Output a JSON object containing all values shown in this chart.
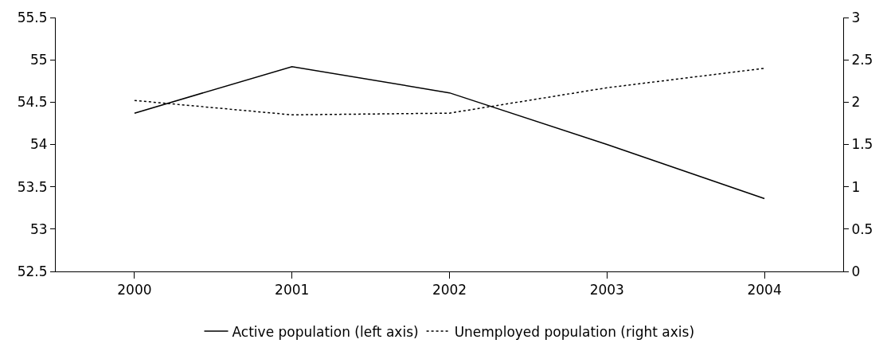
{
  "chart_data": {
    "type": "line",
    "categories": [
      "2000",
      "2001",
      "2002",
      "2003",
      "2004"
    ],
    "series": [
      {
        "name": "Active population (left axis)",
        "color": "#000000",
        "line_style": "solid",
        "values": [
          54.37,
          54.92,
          54.61,
          54.0,
          53.36
        ]
      },
      {
        "name": "Unemployed population (right axis)",
        "color": "#000000",
        "line_style": "dotted",
        "axis": "y2",
        "values": [
          2.02,
          1.85,
          1.87,
          2.17,
          2.4
        ]
      }
    ],
    "ylim": [
      52.5,
      55.5
    ],
    "yticks": [
      52.5,
      53,
      53.5,
      54,
      54.5,
      55,
      55.5
    ],
    "y2lim": [
      0,
      3
    ],
    "y2ticks": [
      0,
      0.5,
      1,
      1.5,
      2,
      2.5,
      3
    ],
    "legend": "bottom",
    "marker": "none"
  }
}
